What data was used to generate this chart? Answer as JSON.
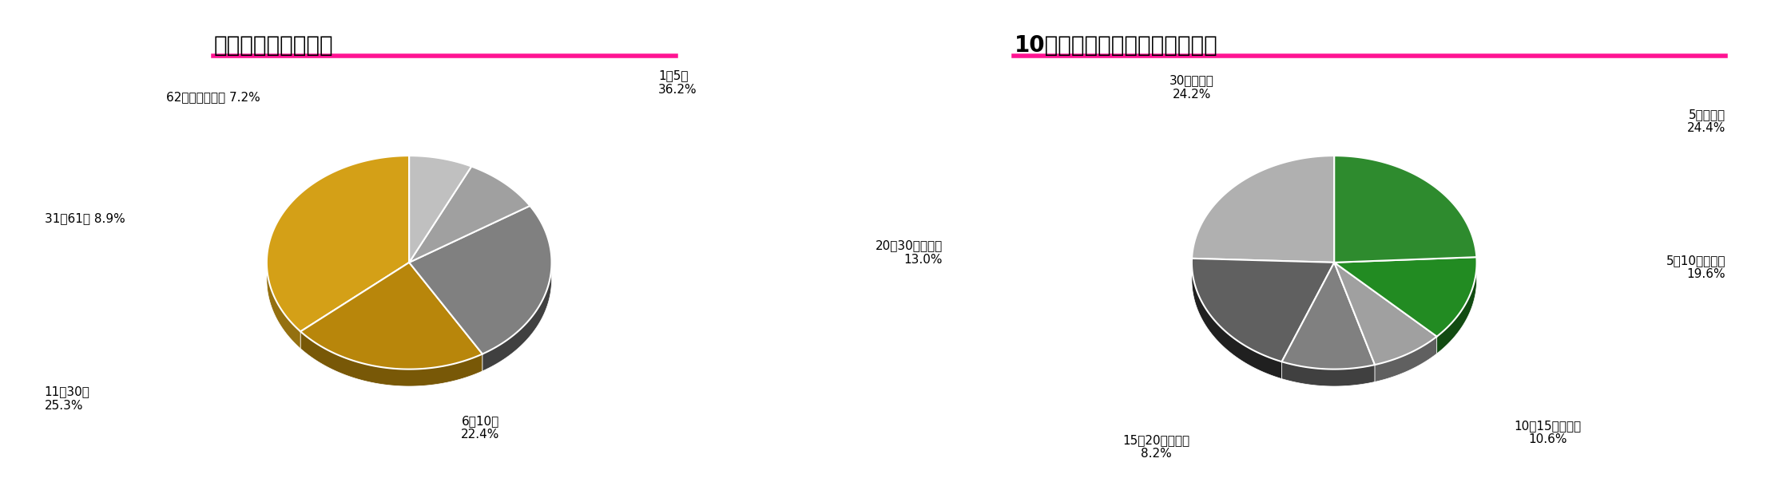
{
  "chart1_title": "退院患者の在院日数",
  "chart2_title": "10日以内の入院での自己負担額",
  "title_underline_color": "#FF1493",
  "background_color": "#ffffff",
  "chart1_labels": [
    "1〜5日",
    "6〜10日",
    "11〜30日",
    "31〜61日",
    "62日以上・不詳"
  ],
  "chart1_values": [
    36.2,
    22.4,
    25.3,
    8.9,
    7.2
  ],
  "chart1_colors": [
    "#D4A017",
    "#B8860B",
    "#808080",
    "#A0A0A0",
    "#C0C0C0"
  ],
  "chart1_pct_labels": [
    "36.2%",
    "22.4%",
    "25.3%",
    "8.9%",
    "7.2%"
  ],
  "chart1_startangle": 90,
  "chart2_labels": [
    "5万円未満",
    "5〜10万円未満",
    "10〜15万円未満",
    "15〜20万円未満",
    "20〜30万円未満",
    "30万円以上"
  ],
  "chart2_values": [
    24.4,
    19.6,
    10.6,
    8.2,
    13.0,
    24.2
  ],
  "chart2_colors": [
    "#B0B0B0",
    "#606060",
    "#808080",
    "#A0A0A0",
    "#228B22",
    "#2E8B2E"
  ],
  "chart2_pct_labels": [
    "24.4%",
    "19.6%",
    "10.6%",
    "8.2%",
    "13.0%",
    "24.2%"
  ],
  "chart2_startangle": 90
}
